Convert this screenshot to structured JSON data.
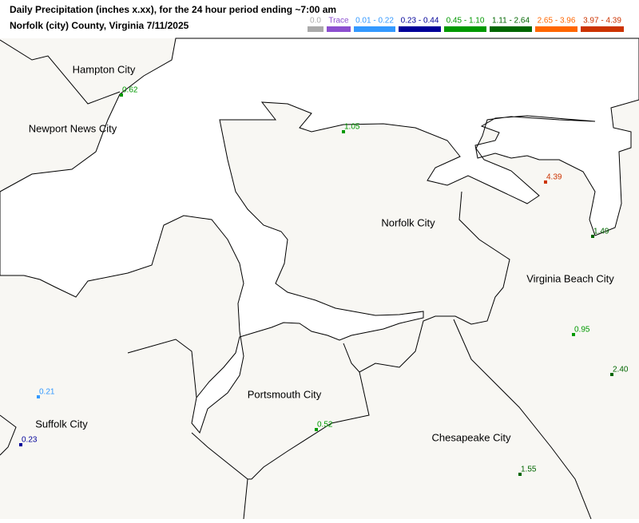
{
  "header": {
    "title": "Daily Precipitation (inches  x.xx),  for the 24 hour period ending ~7:00 am",
    "subtitle": "Norfolk (city) County, Virginia  7/11/2025"
  },
  "legend": [
    {
      "label": "0.0",
      "color": "#aaaaaa"
    },
    {
      "label": "Trace",
      "color": "#8c4fd0"
    },
    {
      "label": "0.01 - 0.22",
      "color": "#3399ff"
    },
    {
      "label": "0.23 - 0.44",
      "color": "#000099"
    },
    {
      "label": "0.45 - 1.10",
      "color": "#009900"
    },
    {
      "label": "1.11 - 2.64",
      "color": "#006600"
    },
    {
      "label": "2.65 - 3.96",
      "color": "#ff6600"
    },
    {
      "label": "3.97 - 4.39",
      "color": "#cc3300"
    }
  ],
  "cities": [
    "Hampton City",
    "Newport News City",
    "Norfolk City",
    "Virginia Beach City",
    "Portsmouth City",
    "Suffolk City",
    "Chesapeake City"
  ],
  "stations": [
    {
      "value": "0.62",
      "color": "#009900"
    },
    {
      "value": "1.05",
      "color": "#009900"
    },
    {
      "value": "4.39",
      "color": "#cc3300"
    },
    {
      "value": "1.49",
      "color": "#006600"
    },
    {
      "value": "0.95",
      "color": "#009900"
    },
    {
      "value": "2.40",
      "color": "#006600"
    },
    {
      "value": "0.52",
      "color": "#009900"
    },
    {
      "value": "0.21",
      "color": "#3399ff"
    },
    {
      "value": "0.23",
      "color": "#000099"
    },
    {
      "value": "1.55",
      "color": "#006600"
    }
  ]
}
